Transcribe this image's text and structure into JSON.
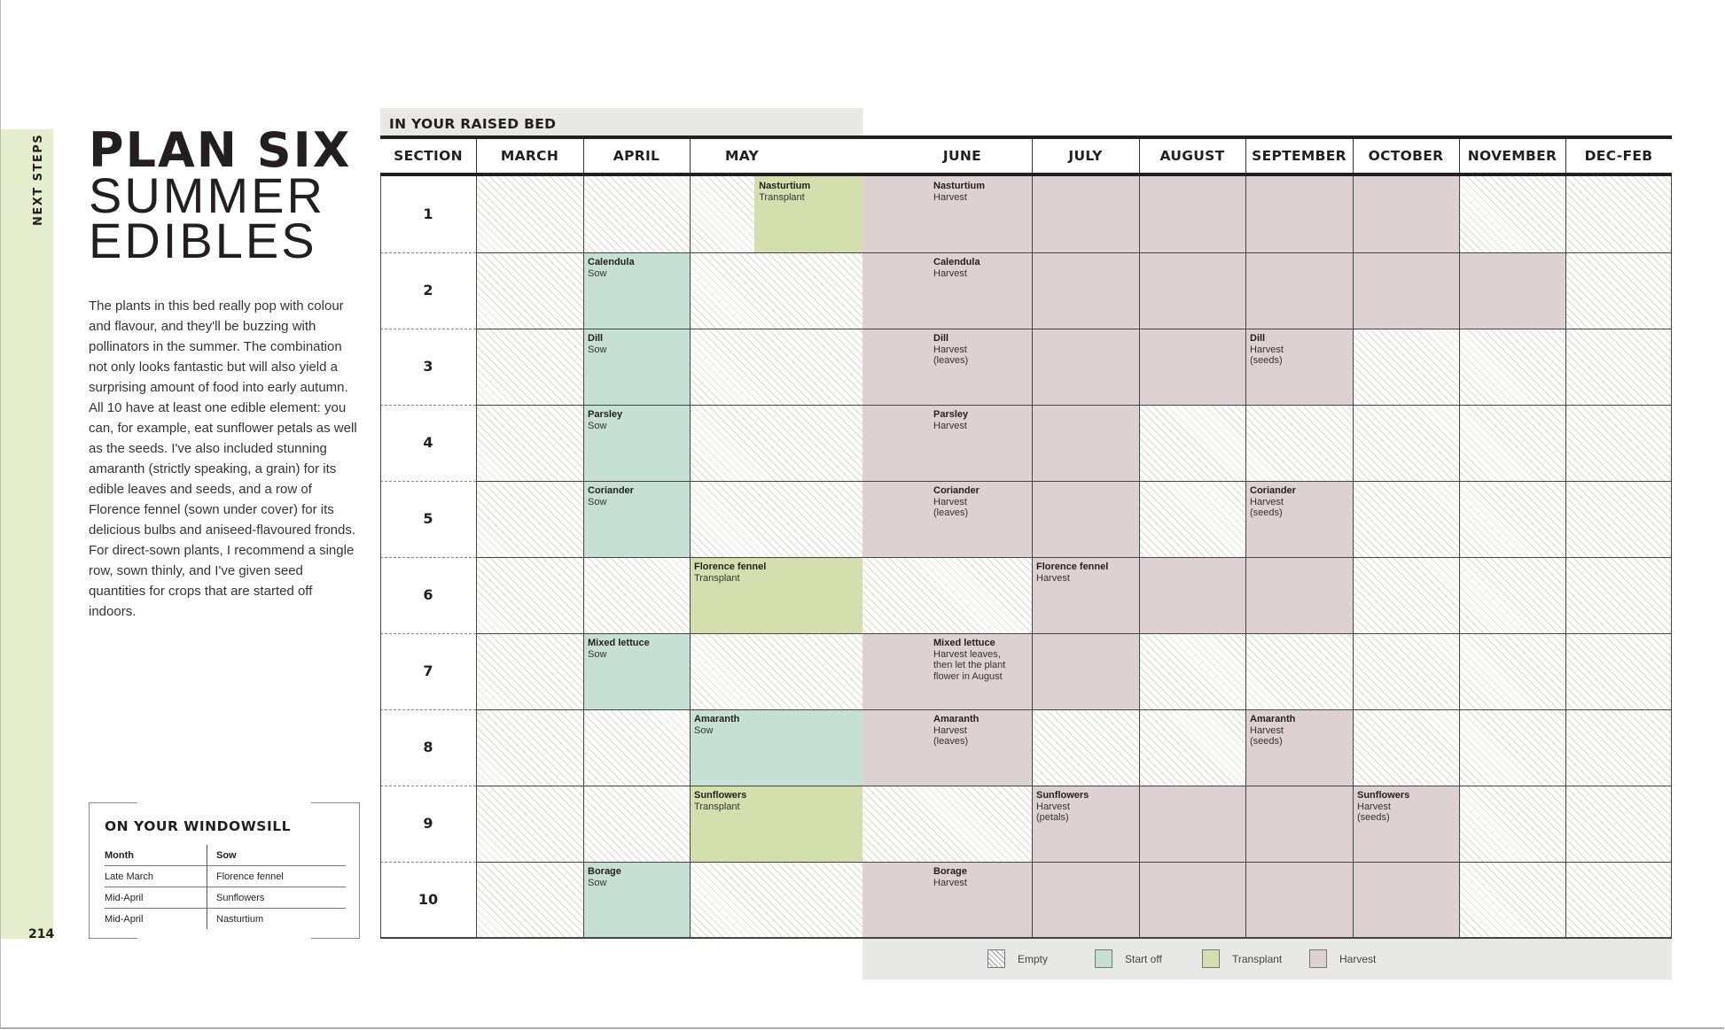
{
  "sidebar": {
    "section_label": "NEXT STEPS",
    "page_number": "214",
    "accent_color": "#e4eecd"
  },
  "title": {
    "line1": "PLAN SIX",
    "line2": "SUMMER",
    "line3": "EDIBLES"
  },
  "intro": "The plants in this bed really pop with colour and flavour, and they'll be buzzing with pollinators in the summer. The combination not only looks fantastic but will also yield a surprising amount of food into early autumn. All 10 have at least one edible element: you can, for example, eat sunflower petals as well as the seeds. I've also included stunning amaranth (strictly speaking, a grain) for its edible leaves and seeds, and a row of Florence fennel (sown under cover) for its delicious bulbs and aniseed-flavoured fronds. For direct-sown plants, I recommend a single row, sown thinly, and I've given seed quantities for crops that are started off indoors.",
  "windowsill": {
    "heading": "ON YOUR WINDOWSILL",
    "columns": [
      "Month",
      "Sow"
    ],
    "rows": [
      [
        "Late March",
        "Florence fennel"
      ],
      [
        "Mid-April",
        "Sunflowers"
      ],
      [
        "Mid-April",
        "Nasturtium"
      ]
    ]
  },
  "planner": {
    "heading": "IN YOUR RAISED BED",
    "section_header": "SECTION",
    "months": [
      "MARCH",
      "APRIL",
      "MAY",
      "JUNE",
      "JULY",
      "AUGUST",
      "SEPTEMBER",
      "OCTOBER",
      "NOVEMBER",
      "DEC-FEB"
    ],
    "colors": {
      "start": "#c7e0d5",
      "transplant": "#d3e0ae",
      "harvest": "#ddd1d4",
      "empty": "#ffffff"
    },
    "sections": [
      {
        "number": "1",
        "blocks": [
          {
            "start": 2.375,
            "end": 3,
            "type": "transplant",
            "plant": "Nasturtium",
            "action": "Transplant"
          },
          {
            "start": 3,
            "end": 8,
            "type": "harvest",
            "plant": "Nasturtium",
            "action": "Harvest"
          }
        ]
      },
      {
        "number": "2",
        "blocks": [
          {
            "start": 1,
            "end": 2,
            "type": "start",
            "plant": "Calendula",
            "action": "Sow"
          },
          {
            "start": 3,
            "end": 9,
            "type": "harvest",
            "plant": "Calendula",
            "action": "Harvest"
          }
        ]
      },
      {
        "number": "3",
        "blocks": [
          {
            "start": 1,
            "end": 2,
            "type": "start",
            "plant": "Dill",
            "action": "Sow"
          },
          {
            "start": 3,
            "end": 6,
            "type": "harvest",
            "plant": "Dill",
            "action": "Harvest\n(leaves)"
          },
          {
            "start": 6,
            "end": 7,
            "type": "harvest",
            "plant": "Dill",
            "action": "Harvest\n(seeds)"
          }
        ]
      },
      {
        "number": "4",
        "blocks": [
          {
            "start": 1,
            "end": 2,
            "type": "start",
            "plant": "Parsley",
            "action": "Sow"
          },
          {
            "start": 3,
            "end": 5,
            "type": "harvest",
            "plant": "Parsley",
            "action": "Harvest"
          }
        ]
      },
      {
        "number": "5",
        "blocks": [
          {
            "start": 1,
            "end": 2,
            "type": "start",
            "plant": "Coriander",
            "action": "Sow"
          },
          {
            "start": 3,
            "end": 5,
            "type": "harvest",
            "plant": "Coriander",
            "action": "Harvest\n(leaves)"
          },
          {
            "start": 6,
            "end": 7,
            "type": "harvest",
            "plant": "Coriander",
            "action": "Harvest\n (seeds)"
          }
        ]
      },
      {
        "number": "6",
        "blocks": [
          {
            "start": 2,
            "end": 3,
            "type": "transplant",
            "plant": "Florence fennel",
            "action": "Transplant"
          },
          {
            "start": 4,
            "end": 7,
            "type": "harvest",
            "plant": "Florence fennel",
            "action": "Harvest"
          }
        ]
      },
      {
        "number": "7",
        "blocks": [
          {
            "start": 1,
            "end": 2,
            "type": "start",
            "plant": "Mixed lettuce",
            "action": "Sow"
          },
          {
            "start": 3,
            "end": 5,
            "type": "harvest",
            "plant": "Mixed lettuce",
            "action": "Harvest leaves,\nthen let the plant\nflower in August"
          }
        ]
      },
      {
        "number": "8",
        "blocks": [
          {
            "start": 2,
            "end": 3,
            "type": "start",
            "plant": "Amaranth",
            "action": "Sow"
          },
          {
            "start": 3,
            "end": 4,
            "type": "harvest",
            "plant": "Amaranth",
            "action": "Harvest\n(leaves)"
          },
          {
            "start": 6,
            "end": 7,
            "type": "harvest",
            "plant": "Amaranth",
            "action": "Harvest\n (seeds)"
          }
        ]
      },
      {
        "number": "9",
        "blocks": [
          {
            "start": 2,
            "end": 3,
            "type": "transplant",
            "plant": "Sunflowers",
            "action": "Transplant"
          },
          {
            "start": 4,
            "end": 7,
            "type": "harvest",
            "plant": "Sunflowers",
            "action": "Harvest\n(petals)"
          },
          {
            "start": 7,
            "end": 8,
            "type": "harvest",
            "plant": "Sunflowers",
            "action": "Harvest\n(seeds)"
          }
        ]
      },
      {
        "number": "10",
        "blocks": [
          {
            "start": 1,
            "end": 2,
            "type": "start",
            "plant": "Borage",
            "action": "Sow"
          },
          {
            "start": 3,
            "end": 8,
            "type": "harvest",
            "plant": "Borage",
            "action": "Harvest"
          }
        ]
      }
    ]
  },
  "legend": [
    {
      "key": "empty",
      "label": "Empty"
    },
    {
      "key": "start",
      "label": "Start off"
    },
    {
      "key": "transplant",
      "label": "Transplant"
    },
    {
      "key": "harvest",
      "label": "Harvest"
    }
  ]
}
